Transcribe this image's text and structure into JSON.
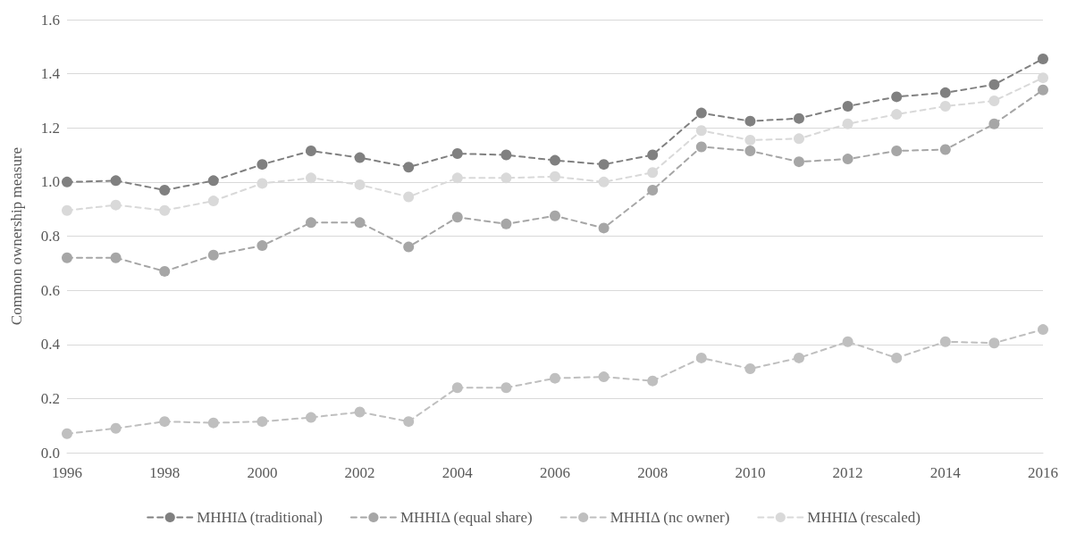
{
  "chart_data": {
    "type": "line",
    "ylabel": "Common ownership measure",
    "x": [
      1996,
      1997,
      1998,
      1999,
      2000,
      2001,
      2002,
      2003,
      2004,
      2005,
      2006,
      2007,
      2008,
      2009,
      2010,
      2011,
      2012,
      2013,
      2014,
      2015,
      2016
    ],
    "xlim": [
      1996,
      2016
    ],
    "xticks": [
      1996,
      1998,
      2000,
      2002,
      2004,
      2006,
      2008,
      2010,
      2012,
      2014,
      2016
    ],
    "ylim": [
      0,
      1.6
    ],
    "yticks": [
      {
        "value": 0,
        "label": "0.0"
      },
      0.2,
      0.4,
      0.6,
      0.8,
      {
        "value": 1,
        "label": "1.0"
      },
      1.2,
      1.4,
      1.6
    ],
    "grid": "y",
    "legend": "bottom",
    "marker": "circle",
    "line_style": "dashed",
    "series": [
      {
        "name": "MHHIΔ (traditional)",
        "color": "#808080",
        "values": [
          1.0,
          1.005,
          0.97,
          1.005,
          1.065,
          1.115,
          1.09,
          1.055,
          1.105,
          1.1,
          1.08,
          1.065,
          1.1,
          1.255,
          1.225,
          1.235,
          1.28,
          1.315,
          1.33,
          1.36,
          1.455
        ]
      },
      {
        "name": "MHHIΔ (equal share)",
        "color": "#a6a6a6",
        "values": [
          0.72,
          0.72,
          0.67,
          0.73,
          0.765,
          0.85,
          0.85,
          0.76,
          0.87,
          0.845,
          0.875,
          0.83,
          0.97,
          1.13,
          1.115,
          1.075,
          1.085,
          1.115,
          1.12,
          1.215,
          1.34
        ]
      },
      {
        "name": "MHHIΔ (nc owner)",
        "color": "#bfbfbf",
        "values": [
          0.07,
          0.09,
          0.115,
          0.11,
          0.115,
          0.13,
          0.15,
          0.115,
          0.24,
          0.24,
          0.275,
          0.28,
          0.265,
          0.35,
          0.31,
          0.35,
          0.41,
          0.35,
          0.41,
          0.405,
          0.455
        ]
      },
      {
        "name": "MHHIΔ (rescaled)",
        "color": "#d9d9d9",
        "values": [
          0.895,
          0.915,
          0.895,
          0.93,
          0.995,
          1.015,
          0.99,
          0.945,
          1.015,
          1.015,
          1.02,
          1.0,
          1.035,
          1.19,
          1.155,
          1.16,
          1.215,
          1.25,
          1.28,
          1.3,
          1.385
        ]
      }
    ]
  }
}
